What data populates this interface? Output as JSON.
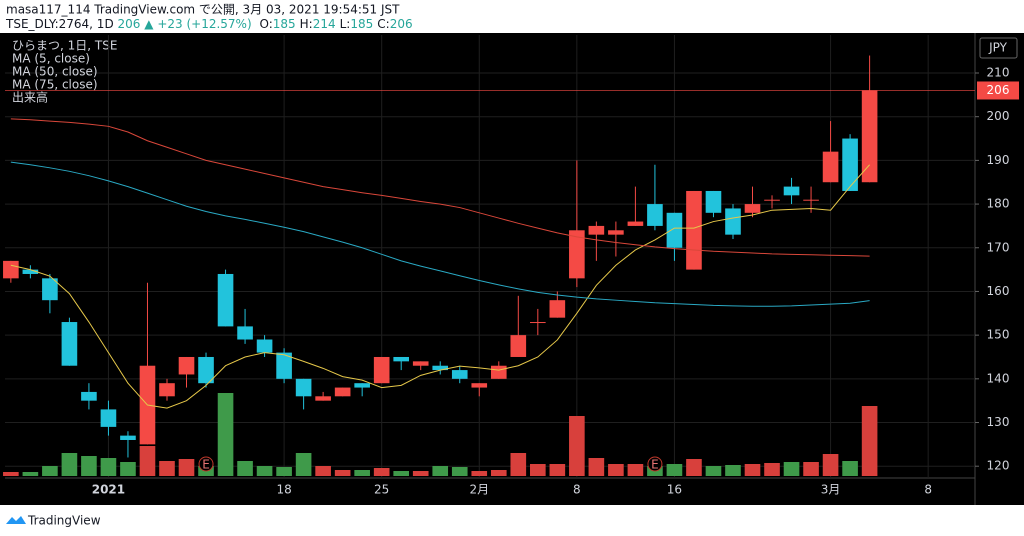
{
  "header": {
    "line1": "masa117_114 TradingView.com で公開, 3月 03, 2021 19:54:51 JST",
    "symbol": "TSE_DLY:2764, 1D",
    "last": "206",
    "change": "+23 (+12.57%)",
    "quote": [
      {
        "label": "O:",
        "value": "185"
      },
      {
        "label": "H:",
        "value": "214"
      },
      {
        "label": "L:",
        "value": "185"
      },
      {
        "label": "C:",
        "value": "206"
      }
    ]
  },
  "legend": [
    "ひらまつ, 1日, TSE"
  ],
  "footer": {
    "brand": "TradingView"
  },
  "chart_data": {
    "type": "candlestick",
    "currency": "JPY",
    "x": [
      0,
      1,
      2,
      3,
      4,
      5,
      6,
      7,
      8,
      9,
      10,
      11,
      12,
      13,
      14,
      15,
      16,
      17,
      18,
      19,
      20,
      21,
      22,
      23,
      24,
      25,
      26,
      27,
      28,
      29,
      30,
      31,
      32,
      33,
      34,
      35,
      36,
      37,
      38,
      39,
      40,
      41,
      42,
      43,
      44
    ],
    "open": [
      163,
      165,
      163,
      153,
      137,
      133,
      127,
      125,
      136,
      141,
      145,
      164,
      152,
      149,
      146,
      140,
      135,
      136,
      139,
      139,
      145,
      143,
      143,
      142,
      138,
      140,
      145,
      153,
      154,
      163,
      173,
      173,
      175,
      180,
      178,
      165,
      183,
      179,
      178,
      181,
      184,
      181,
      185,
      195,
      185
    ],
    "high": [
      167,
      166,
      164,
      154,
      139,
      135,
      128,
      162,
      140,
      145,
      146,
      165,
      156,
      150,
      147,
      140,
      137,
      138,
      139,
      145,
      145,
      144,
      144,
      143,
      139,
      144,
      159,
      156,
      160,
      190,
      176,
      176,
      184,
      189,
      178,
      183,
      183,
      180,
      184,
      182,
      186,
      184,
      199,
      196,
      214
    ],
    "low": [
      162,
      163,
      155,
      143,
      133,
      127,
      122,
      125,
      135,
      138,
      138,
      152,
      148,
      145,
      139,
      133,
      135,
      136,
      136,
      139,
      142,
      142,
      141,
      139,
      136,
      140,
      145,
      150,
      154,
      161,
      167,
      168,
      175,
      174,
      167,
      165,
      177,
      172,
      177,
      179,
      180,
      178,
      185,
      183,
      185
    ],
    "close": [
      167,
      164,
      158,
      143,
      135,
      129,
      126,
      143,
      139,
      145,
      139,
      152,
      149,
      146,
      140,
      136,
      136,
      138,
      138,
      145,
      144,
      144,
      142,
      140,
      139,
      143,
      150,
      153,
      158,
      174,
      175,
      174,
      176,
      175,
      170,
      183,
      178,
      173,
      180,
      181,
      182,
      181,
      192,
      183,
      206
    ],
    "volume": [
      4,
      4,
      10,
      23,
      20,
      18,
      14,
      30,
      15,
      17,
      10,
      83,
      15,
      10,
      9,
      23,
      10,
      6,
      6,
      8,
      5,
      5,
      10,
      9,
      5,
      6,
      23,
      12,
      12,
      60,
      18,
      12,
      12,
      10,
      12,
      17,
      10,
      11,
      12,
      13,
      14,
      14,
      22,
      15,
      70
    ],
    "volume_lim": [
      0,
      100
    ],
    "up_color": "#f44a45",
    "down_color": "#22c3dc",
    "volume_up_color": "#d8403c",
    "volume_down_color": "#3f9a4a",
    "ma": [
      {
        "name": "MA (5, close)",
        "color": "#e6c84a",
        "values": [
          166,
          165,
          163.5,
          159.5,
          153,
          146,
          139,
          134,
          133.3,
          135,
          138.5,
          143,
          145,
          146,
          145.5,
          144,
          142.4,
          140.5,
          139.7,
          138,
          138.5,
          140.8,
          142,
          142.9,
          142.5,
          142,
          143,
          145,
          148.9,
          155,
          161.4,
          166,
          169.5,
          171.8,
          174.5,
          174.5,
          176,
          176.8,
          177.5,
          178.6,
          178.8,
          179,
          178.6,
          184,
          189
        ]
      },
      {
        "name": "MA (50, close)",
        "color": "#2aa9c4",
        "values": [
          189.6,
          189,
          188.3,
          187.5,
          186.5,
          185.3,
          184,
          182.5,
          181,
          179.5,
          178.3,
          177.3,
          176.5,
          175.6,
          174.7,
          173.7,
          172.5,
          171.3,
          170,
          168.5,
          167,
          165.8,
          164.7,
          163.6,
          162.5,
          161.5,
          160.6,
          159.8,
          159.2,
          158.7,
          158.3,
          158,
          157.7,
          157.4,
          157.2,
          157,
          156.8,
          156.7,
          156.6,
          156.6,
          156.7,
          156.9,
          157.1,
          157.3,
          157.9
        ]
      },
      {
        "name": "MA (75, close)",
        "color": "#d9473a",
        "values": [
          199.5,
          199.3,
          199,
          198.7,
          198.3,
          197.8,
          196.5,
          194.5,
          193,
          191.5,
          190,
          189,
          188,
          187,
          186,
          185,
          184,
          183.3,
          182.6,
          182,
          181.3,
          180.6,
          180,
          179.2,
          178,
          176.8,
          175.6,
          174.5,
          173.4,
          172.5,
          171.8,
          171.2,
          170.7,
          170.2,
          169.8,
          169.5,
          169.2,
          169,
          168.8,
          168.6,
          168.5,
          168.4,
          168.3,
          168.2,
          168.1
        ]
      }
    ],
    "volume_name": "出来高",
    "events": [
      {
        "x": 10,
        "label": "E"
      },
      {
        "x": 33,
        "label": "E"
      }
    ],
    "last_price": 206,
    "xlim": [
      -0.3,
      49.4
    ],
    "xticks": [
      {
        "value": 5,
        "label": "2021"
      },
      {
        "value": 14,
        "label": "18"
      },
      {
        "value": 19,
        "label": "25"
      },
      {
        "value": 24,
        "label": "2月"
      },
      {
        "value": 29,
        "label": "8"
      },
      {
        "value": 34,
        "label": "16"
      },
      {
        "value": 42,
        "label": "3月"
      },
      {
        "value": 47,
        "label": "8"
      }
    ],
    "ylim": [
      117.3,
      218.7
    ],
    "yticks": [
      120,
      130,
      140,
      150,
      160,
      170,
      180,
      190,
      200,
      210
    ],
    "grid": true
  }
}
